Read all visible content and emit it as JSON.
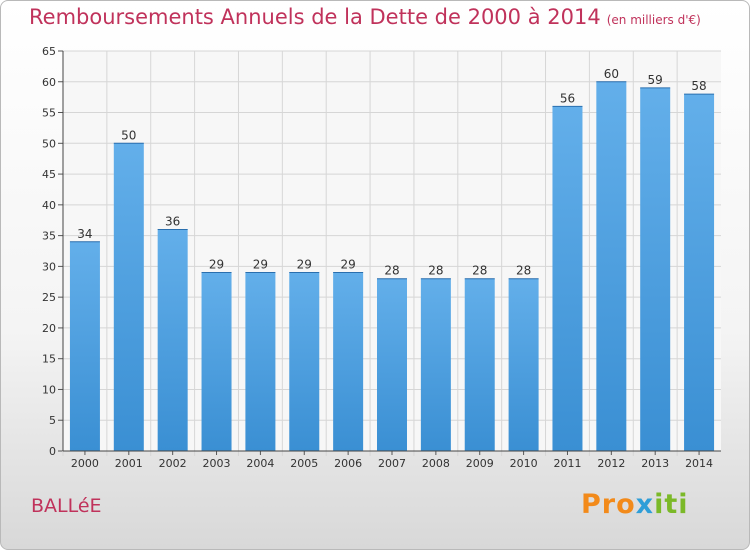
{
  "title": "Remboursements Annuels de la Dette de 2000 à 2014",
  "unit": "(en milliers d'€)",
  "commune": "BALLéE",
  "logo": {
    "p1": "Pro",
    "p2": "x",
    "p3": "iti"
  },
  "colors": {
    "bar": "#3a8fd3",
    "bar_light": "#63afea",
    "title": "#c0325b",
    "grid": "#d6d6d6"
  },
  "chart_data": {
    "type": "bar",
    "categories": [
      "2000",
      "2001",
      "2002",
      "2003",
      "2004",
      "2005",
      "2006",
      "2007",
      "2008",
      "2009",
      "2010",
      "2011",
      "2012",
      "2013",
      "2014"
    ],
    "values": [
      34,
      50,
      36,
      29,
      29,
      29,
      29,
      28,
      28,
      28,
      28,
      56,
      60,
      59,
      58
    ],
    "title": "Remboursements Annuels de la Dette de 2000 à 2014",
    "xlabel": "",
    "ylabel": "",
    "ylim": [
      0,
      65
    ],
    "yticks": [
      0,
      5,
      10,
      15,
      20,
      25,
      30,
      35,
      40,
      45,
      50,
      55,
      60,
      65
    ],
    "grid": true,
    "data_labels": true
  }
}
